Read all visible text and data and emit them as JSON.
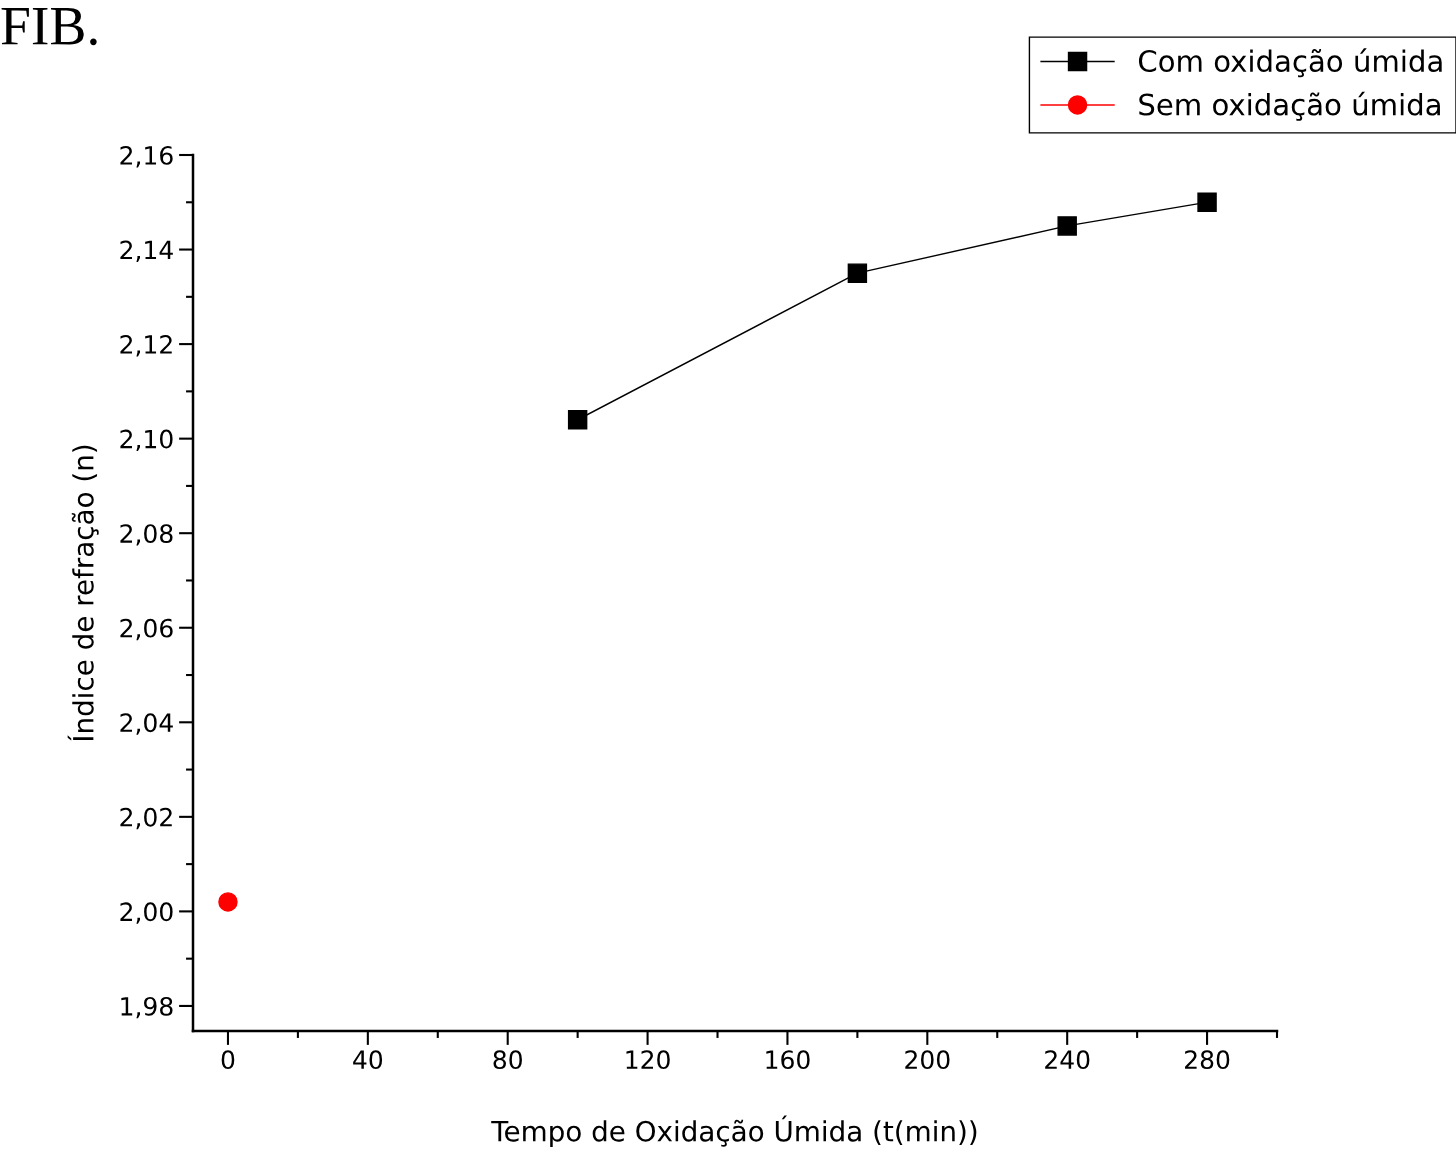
{
  "chart_data": {
    "type": "line",
    "xlabel": "Tempo de Oxidação Úmida (t(min))",
    "ylabel": "Índice de refração (n)",
    "annotations": [
      "FIB."
    ],
    "series": [
      {
        "name": "Com oxidação úmida",
        "color": "#000000",
        "x": [
          100,
          180,
          240,
          280
        ],
        "values": [
          2.104,
          2.135,
          2.145,
          2.15
        ],
        "marker": "square"
      },
      {
        "name": "Sem oxidação úmida",
        "color": "#ff0000",
        "x": [
          0
        ],
        "values": [
          2.002
        ],
        "marker": "circle"
      }
    ],
    "xlim": [
      -10,
      300
    ],
    "xticks": [
      0,
      40,
      80,
      120,
      160,
      200,
      240,
      280
    ],
    "ylim": [
      1.9747,
      2.16
    ],
    "yticks": [
      {
        "value": 1.98,
        "label": "1,98"
      },
      {
        "value": 2.0,
        "label": "2,00"
      },
      {
        "value": 2.02,
        "label": "2,02"
      },
      {
        "value": 2.04,
        "label": "2,04"
      },
      {
        "value": 2.06,
        "label": "2,06"
      },
      {
        "value": 2.08,
        "label": "2,08"
      },
      {
        "value": 2.1,
        "label": "2,10"
      },
      {
        "value": 2.12,
        "label": "2,12"
      },
      {
        "value": 2.14,
        "label": "2,14"
      },
      {
        "value": 2.16,
        "label": "2,16"
      }
    ],
    "grid": false,
    "legend": "top right",
    "line_style": "solid"
  }
}
